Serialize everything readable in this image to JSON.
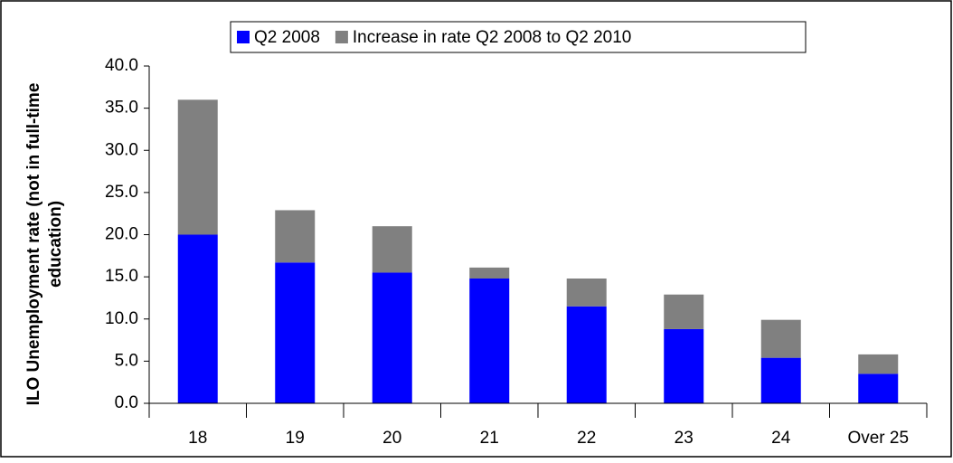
{
  "chart_data": {
    "type": "stacked_bar",
    "ylabel": [
      "ILO Unemployment rate (not in full-time",
      "education)"
    ],
    "categories": [
      "18",
      "19",
      "20",
      "21",
      "22",
      "23",
      "24",
      "Over 25"
    ],
    "series": [
      {
        "name": "Q2 2008",
        "color": "#0000ff",
        "values": [
          20.0,
          16.7,
          15.5,
          14.8,
          11.5,
          8.8,
          5.4,
          3.5
        ]
      },
      {
        "name": "Increase in rate Q2 2008 to Q2 2010",
        "color": "#808080",
        "values": [
          16.0,
          6.2,
          5.5,
          1.3,
          3.3,
          4.1,
          4.5,
          2.3
        ]
      }
    ],
    "ylim": [
      0,
      40
    ],
    "yticks": [
      {
        "value": 0,
        "label": "0.0"
      },
      {
        "value": 5,
        "label": "5.0"
      },
      {
        "value": 10,
        "label": "10.0"
      },
      {
        "value": 15,
        "label": "15.0"
      },
      {
        "value": 20,
        "label": "20.0"
      },
      {
        "value": 25,
        "label": "25.0"
      },
      {
        "value": 30,
        "label": "30.0"
      },
      {
        "value": 35,
        "label": "35.0"
      },
      {
        "value": 40,
        "label": "40.0"
      }
    ],
    "legend": "top",
    "grid": false
  }
}
